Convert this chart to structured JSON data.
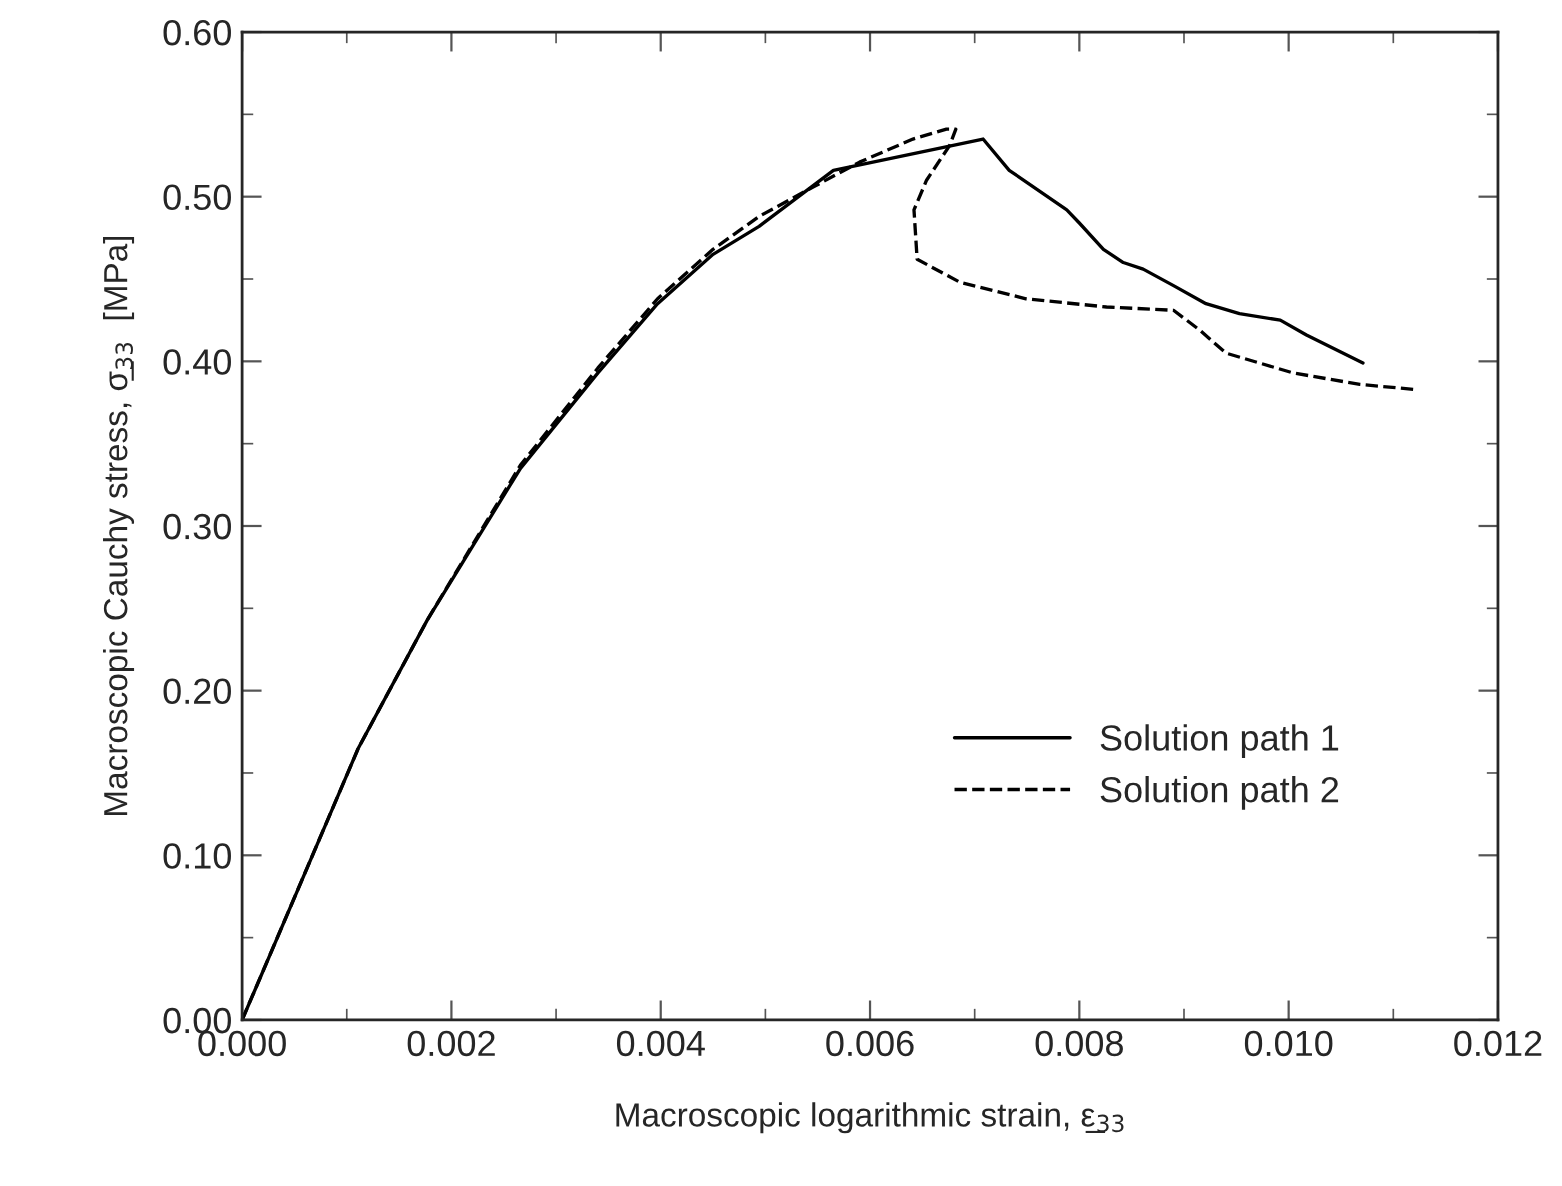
{
  "chart_data": {
    "type": "line",
    "xlabel": "Macroscopic logarithmic strain, ε̲$_{33}$",
    "ylabel": "Macroscopic Cauchy stress, σ̲$_{33}$  [MPa]",
    "xlim": [
      0,
      0.012
    ],
    "ylim": [
      0,
      0.6
    ],
    "xticks": [
      {
        "value": 0,
        "label": "0.000"
      },
      {
        "value": 0.002,
        "label": "0.002"
      },
      {
        "value": 0.004,
        "label": "0.004"
      },
      {
        "value": 0.006,
        "label": "0.006"
      },
      {
        "value": 0.008,
        "label": "0.008"
      },
      {
        "value": 0.01,
        "label": "0.010"
      },
      {
        "value": 0.012,
        "label": "0.012"
      }
    ],
    "yticks": [
      {
        "value": 0,
        "label": "0.00"
      },
      {
        "value": 0.1,
        "label": "0.10"
      },
      {
        "value": 0.2,
        "label": "0.20"
      },
      {
        "value": 0.3,
        "label": "0.30"
      },
      {
        "value": 0.4,
        "label": "0.40"
      },
      {
        "value": 0.5,
        "label": "0.50"
      },
      {
        "value": 0.6,
        "label": "0.60"
      }
    ],
    "grid": false,
    "legend": "bottom right",
    "marker": "none",
    "series": [
      {
        "name": "Solution path 1",
        "color": "#000000",
        "line_style": "solid",
        "x": [
          0,
          0.00111,
          0.00177,
          0.00266,
          0.0034,
          0.00397,
          0.0045,
          0.00494,
          0.00565,
          0.00708,
          0.00733,
          0.00756,
          0.00788,
          0.008,
          0.00823,
          0.00842,
          0.00861,
          0.0089,
          0.00921,
          0.00953,
          0.00992,
          0.01017,
          0.01071
        ],
        "values": [
          0,
          0.165,
          0.243,
          0.335,
          0.393,
          0.435,
          0.465,
          0.482,
          0.516,
          0.535,
          0.516,
          0.506,
          0.492,
          0.484,
          0.468,
          0.46,
          0.456,
          0.446,
          0.435,
          0.429,
          0.425,
          0.416,
          0.399
        ]
      },
      {
        "name": "Solution path 2",
        "color": "#000000",
        "line_style": "dashed",
        "x": [
          0,
          0.00111,
          0.00177,
          0.00266,
          0.0034,
          0.00397,
          0.0045,
          0.00494,
          0.00546,
          0.0059,
          0.00641,
          0.00673,
          0.00682,
          0.00676,
          0.00654,
          0.00642,
          0.00645,
          0.00686,
          0.00749,
          0.00826,
          0.0089,
          0.00915,
          0.0094,
          0.01004,
          0.01068,
          0.01119
        ],
        "values": [
          0,
          0.165,
          0.243,
          0.337,
          0.396,
          0.438,
          0.468,
          0.488,
          0.506,
          0.521,
          0.535,
          0.541,
          0.541,
          0.531,
          0.51,
          0.492,
          0.462,
          0.448,
          0.438,
          0.433,
          0.431,
          0.419,
          0.405,
          0.393,
          0.386,
          0.383
        ]
      }
    ]
  }
}
